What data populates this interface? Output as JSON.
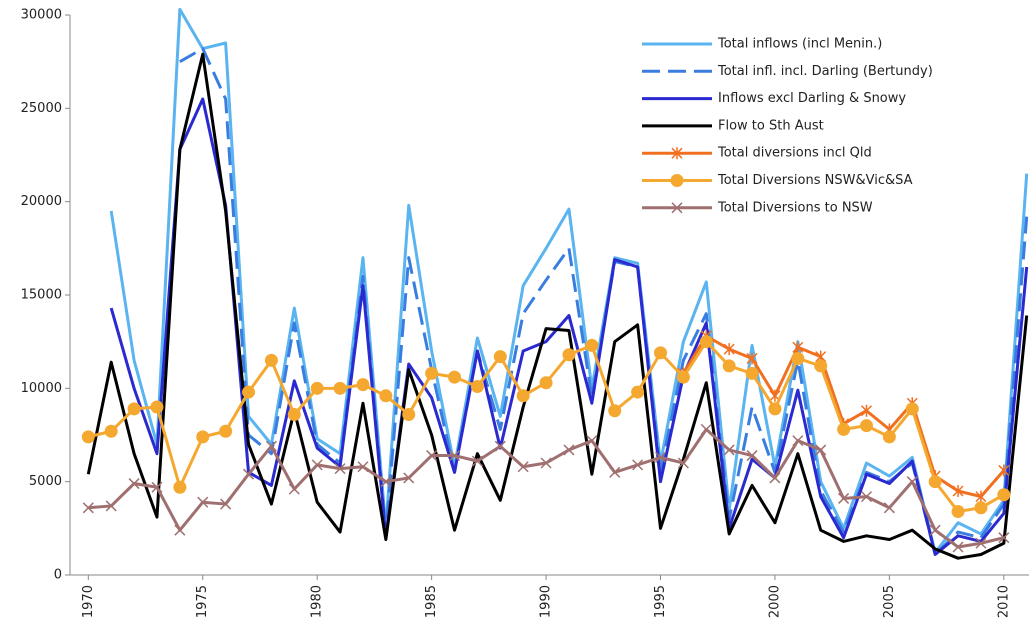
{
  "chart_data": {
    "type": "line",
    "x": [
      1970,
      1971,
      1972,
      1973,
      1974,
      1975,
      1976,
      1977,
      1978,
      1979,
      1980,
      1981,
      1982,
      1983,
      1984,
      1985,
      1986,
      1987,
      1988,
      1989,
      1990,
      1991,
      1992,
      1993,
      1994,
      1995,
      1996,
      1997,
      1998,
      1999,
      2000,
      2001,
      2002,
      2003,
      2004,
      2005,
      2006,
      2007,
      2008,
      2009,
      2010,
      2011
    ],
    "xlim": [
      1969.2,
      2011.1
    ],
    "xticks": [
      1970,
      1975,
      1980,
      1985,
      1990,
      1995,
      2000,
      2005,
      2010
    ],
    "ylim": [
      0,
      30000
    ],
    "yticks": [
      0,
      5000,
      10000,
      15000,
      20000,
      25000,
      30000
    ],
    "legend": "upper right",
    "series": [
      {
        "name": "Total inflows (incl Menin.)",
        "color": "#5ab4f0",
        "style": "solid",
        "marker": "none",
        "values": [
          null,
          19500,
          11500,
          7000,
          30300,
          28200,
          28500,
          8500,
          7000,
          14300,
          7300,
          6500,
          17000,
          2500,
          19800,
          12000,
          5800,
          12700,
          8500,
          15500,
          17500,
          19600,
          10000,
          17000,
          16700,
          6000,
          12500,
          15700,
          3500,
          12300,
          5800,
          12500,
          5000,
          2500,
          6000,
          5300,
          6300,
          1200,
          2800,
          2200,
          4000,
          21500
        ]
      },
      {
        "name": "Total infl. incl. Darling (Bertundy)",
        "color": "#3a7de0",
        "style": "dash",
        "marker": "none",
        "values": [
          null,
          null,
          null,
          null,
          27500,
          28200,
          25500,
          7500,
          6500,
          13500,
          7000,
          6000,
          16000,
          2200,
          17000,
          11000,
          5500,
          12000,
          7800,
          14000,
          15800,
          17500,
          9500,
          16800,
          16500,
          5500,
          11500,
          14000,
          3000,
          9000,
          5500,
          11500,
          4500,
          2300,
          5500,
          5000,
          6000,
          1100,
          2300,
          2000,
          3800,
          19200
        ]
      },
      {
        "name": "Inflows excl Darling & Snowy",
        "color": "#2a2ad0",
        "style": "solid",
        "marker": "none",
        "values": [
          null,
          14300,
          10000,
          6500,
          22800,
          25500,
          19800,
          5500,
          4800,
          10400,
          6800,
          5800,
          15500,
          2000,
          11300,
          9500,
          5500,
          12000,
          6800,
          12000,
          12500,
          13900,
          9200,
          16900,
          16500,
          5000,
          10700,
          13500,
          2500,
          6200,
          5200,
          9900,
          4200,
          2000,
          5400,
          4900,
          6100,
          1100,
          2100,
          1800,
          3300,
          16500
        ]
      },
      {
        "name": "Flow to Sth Aust",
        "color": "#000000",
        "style": "solid",
        "marker": "none",
        "values": [
          5400,
          11400,
          6500,
          3100,
          22800,
          27900,
          19500,
          7000,
          3800,
          8800,
          3900,
          2300,
          9200,
          1900,
          11000,
          7500,
          2400,
          6500,
          4000,
          9000,
          13200,
          13100,
          5400,
          12500,
          13400,
          2500,
          6200,
          10300,
          2200,
          4800,
          2800,
          6500,
          2400,
          1800,
          2100,
          1900,
          2400,
          1400,
          900,
          1100,
          1700,
          13900
        ]
      },
      {
        "name": "Total diversions incl Qld",
        "color": "#f07020",
        "style": "solid",
        "marker": "star",
        "values": [
          null,
          null,
          null,
          null,
          null,
          null,
          null,
          null,
          null,
          null,
          null,
          null,
          null,
          null,
          null,
          null,
          null,
          null,
          null,
          null,
          null,
          null,
          null,
          null,
          null,
          null,
          10800,
          12800,
          12100,
          11600,
          9600,
          12200,
          11700,
          8100,
          8800,
          7800,
          9200,
          5300,
          4500,
          4200,
          5600,
          null
        ]
      },
      {
        "name": "Total Diversions NSW&Vic&SA",
        "color": "#f5a830",
        "style": "solid",
        "marker": "circle",
        "values": [
          7400,
          7700,
          8900,
          9000,
          4700,
          7400,
          7700,
          9800,
          11500,
          8600,
          10000,
          10000,
          10200,
          9600,
          8600,
          10800,
          10600,
          10100,
          11700,
          9600,
          10300,
          11800,
          12300,
          8800,
          9800,
          11900,
          10600,
          12500,
          11200,
          10800,
          8900,
          11600,
          11200,
          7800,
          8000,
          7400,
          8900,
          5000,
          3400,
          3600,
          4300,
          null
        ]
      },
      {
        "name": "Total Diversions to NSW",
        "color": "#a07070",
        "style": "solid",
        "marker": "x",
        "values": [
          3600,
          3700,
          4900,
          4700,
          2400,
          3900,
          3800,
          5400,
          6900,
          4600,
          5900,
          5700,
          5800,
          5000,
          5200,
          6400,
          6400,
          6100,
          6900,
          5800,
          6000,
          6700,
          7200,
          5500,
          5900,
          6300,
          6000,
          7800,
          6700,
          6400,
          5200,
          7200,
          6700,
          4100,
          4200,
          3600,
          5000,
          2400,
          1500,
          1700,
          2000,
          null
        ]
      }
    ]
  }
}
